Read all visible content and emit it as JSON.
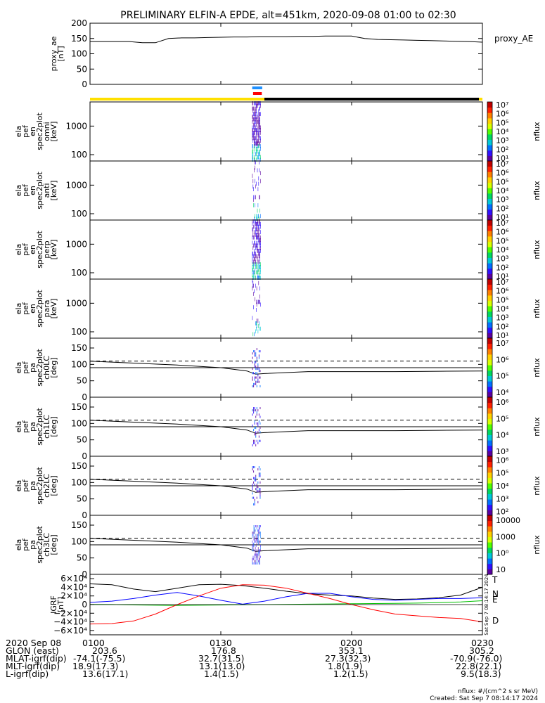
{
  "chart_data": {
    "type": "spectrogram",
    "title": "PRELIMINARY ELFIN-A EPDE, alt=451km, 2020-09-08 01:00 to 02:30",
    "time_ticks": [
      "0100",
      "0130",
      "0200",
      "0230"
    ],
    "time_range_min": [
      0,
      90
    ],
    "science_zone_min": [
      37.2,
      39.2
    ],
    "bars": {
      "blue": [
        37.2,
        39.5
      ],
      "red": [
        37.4,
        39.4
      ],
      "yellow_ranges": [
        [
          0,
          40
        ],
        [
          89.2,
          90
        ]
      ],
      "black_ranges": [
        [
          40,
          89.2
        ]
      ]
    },
    "panels": [
      {
        "id": "proxy_ae",
        "ylabel": [
          "proxy_ae",
          "[nT]"
        ],
        "right_label": "proxy_AE",
        "yticks": [
          "0",
          "50",
          "100",
          "150",
          "200"
        ],
        "ytick_values": [
          0,
          50,
          100,
          150,
          200
        ],
        "ylim": [
          0,
          200
        ],
        "series": {
          "t": [
            0,
            3,
            6,
            9,
            12,
            15,
            18,
            21,
            24,
            27,
            30,
            33,
            36,
            39,
            42,
            45,
            48,
            51,
            54,
            57,
            60,
            63,
            66,
            69,
            72,
            75,
            78,
            81,
            84,
            87,
            90
          ],
          "v": [
            140,
            140,
            140,
            140,
            136,
            136,
            150,
            152,
            152,
            153,
            154,
            155,
            155,
            156,
            156,
            156,
            157,
            157,
            158,
            158,
            158,
            150,
            147,
            146,
            145,
            144,
            143,
            142,
            141,
            140,
            138
          ]
        }
      },
      {
        "id": "spec_omni",
        "ylabel": [
          "ela",
          "pef",
          "en",
          "spec2plot",
          "omni",
          "[keV]"
        ],
        "yticks": [
          "100",
          "1000"
        ],
        "ytick_values": [
          100,
          1000
        ],
        "ylim": [
          60,
          7000
        ],
        "ylog": true,
        "colorbar": {
          "label": "nflux",
          "ticks": [
            "101",
            "102",
            "103",
            "104",
            "105",
            "106",
            "107"
          ]
        }
      },
      {
        "id": "spec_anti",
        "ylabel": [
          "ela",
          "pef",
          "en",
          "spec2plot",
          "anti",
          "[keV]"
        ],
        "yticks": [
          "100",
          "1000"
        ],
        "ytick_values": [
          100,
          1000
        ],
        "ylim": [
          60,
          7000
        ],
        "ylog": true,
        "colorbar": {
          "label": "nflux",
          "ticks": [
            "101",
            "102",
            "103",
            "104",
            "105",
            "106",
            "107"
          ]
        }
      },
      {
        "id": "spec_perp",
        "ylabel": [
          "ela",
          "pef",
          "en",
          "spec2plot",
          "perp",
          "[keV]"
        ],
        "yticks": [
          "100",
          "1000"
        ],
        "ytick_values": [
          100,
          1000
        ],
        "ylim": [
          60,
          7000
        ],
        "ylog": true,
        "colorbar": {
          "label": "nflux",
          "ticks": [
            "101",
            "102",
            "103",
            "104",
            "105",
            "106",
            "107"
          ]
        }
      },
      {
        "id": "spec_para",
        "ylabel": [
          "ela",
          "pef",
          "en",
          "spec2plot",
          "para",
          "[keV]"
        ],
        "yticks": [
          "100",
          "1000"
        ],
        "ytick_values": [
          100,
          1000
        ],
        "ylim": [
          60,
          7000
        ],
        "ylog": true,
        "colorbar": {
          "label": "nflux",
          "ticks": [
            "101",
            "102",
            "103",
            "104",
            "105",
            "106",
            "107"
          ]
        }
      },
      {
        "id": "pa_ch0",
        "ylabel": [
          "ela",
          "pef",
          "pa",
          "spec2plot",
          "ch0LC",
          "[deg]"
        ],
        "yticks": [
          "0",
          "50",
          "100",
          "150"
        ],
        "ytick_values": [
          0,
          50,
          100,
          150
        ],
        "ylim": [
          0,
          180
        ],
        "colorbar": {
          "label": "nflux",
          "ticks": [
            "104",
            "105",
            "106",
            "107"
          ]
        }
      },
      {
        "id": "pa_ch1",
        "ylabel": [
          "ela",
          "pef",
          "pa",
          "spec2plot",
          "ch1LC",
          "[deg]"
        ],
        "yticks": [
          "0",
          "50",
          "100",
          "150"
        ],
        "ytick_values": [
          0,
          50,
          100,
          150
        ],
        "ylim": [
          0,
          180
        ],
        "colorbar": {
          "label": "nflux",
          "ticks": [
            "103",
            "104",
            "105",
            "106"
          ]
        }
      },
      {
        "id": "pa_ch2",
        "ylabel": [
          "ela",
          "pef",
          "pa",
          "spec2plot",
          "ch2LC",
          "[deg]"
        ],
        "yticks": [
          "0",
          "50",
          "100",
          "150"
        ],
        "ytick_values": [
          0,
          50,
          100,
          150
        ],
        "ylim": [
          0,
          180
        ],
        "colorbar": {
          "label": "nflux",
          "ticks": [
            "102",
            "103",
            "104",
            "105",
            "106"
          ]
        }
      },
      {
        "id": "pa_ch3",
        "ylabel": [
          "ela",
          "pef",
          "pa",
          "spec2plot",
          "ch3LC",
          "[deg]"
        ],
        "yticks": [
          "0",
          "50",
          "100",
          "150"
        ],
        "ytick_values": [
          0,
          50,
          100,
          150
        ],
        "ylim": [
          0,
          180
        ],
        "colorbar": {
          "label": "nflux",
          "ticks": [
            "10",
            "100",
            "1000",
            "10000"
          ]
        }
      },
      {
        "id": "igrf",
        "ylabel": [
          "IGRF",
          "[nT]"
        ],
        "yticks": [
          "−6×10⁴",
          "−4×10⁴",
          "−2×10⁴",
          "0",
          "2×10⁴",
          "4×10⁴",
          "6×10⁴"
        ],
        "ytick_values": [
          -60000,
          -40000,
          -20000,
          0,
          20000,
          40000,
          60000
        ],
        "ylim": [
          -70000,
          70000
        ],
        "legend": [
          "T",
          "N",
          "E",
          "D"
        ],
        "legend_colors": [
          "#000000",
          "#0000ff",
          "#00c000",
          "#ff0000"
        ]
      }
    ],
    "pa_lines": {
      "t": [
        0,
        10,
        20,
        30,
        36,
        38,
        40,
        50,
        60,
        70,
        80,
        90
      ],
      "solid": [
        110,
        104,
        98,
        90,
        80,
        70,
        72,
        78,
        78,
        78,
        79,
        80
      ],
      "dashed_deg": 110,
      "flat_deg": 90
    },
    "igrf_series": {
      "t": [
        0,
        5,
        10,
        15,
        20,
        25,
        30,
        35,
        40,
        45,
        50,
        55,
        60,
        65,
        70,
        75,
        80,
        85,
        90
      ],
      "T": [
        48000,
        46000,
        36000,
        30000,
        38000,
        46000,
        47000,
        44000,
        38000,
        31000,
        25000,
        22000,
        20000,
        15000,
        12000,
        13000,
        16000,
        22000,
        40000
      ],
      "N": [
        5000,
        8000,
        14000,
        22000,
        28000,
        20000,
        10000,
        1000,
        8000,
        18000,
        26000,
        26000,
        18000,
        12000,
        10000,
        12000,
        14000,
        14000,
        16000
      ],
      "E": [
        500,
        200,
        -800,
        -1500,
        -2000,
        -1500,
        -1000,
        -500,
        0,
        500,
        1000,
        1500,
        2000,
        2500,
        3000,
        3500,
        4500,
        6000,
        9000
      ],
      "D": [
        -45000,
        -44000,
        -38000,
        -22000,
        0,
        20000,
        38000,
        46000,
        45000,
        38000,
        26000,
        14000,
        0,
        -12000,
        -22000,
        -26000,
        -30000,
        -32000,
        -40000
      ]
    },
    "colorbar_colors": [
      "#ffffff",
      "#5a00a0",
      "#3010ff",
      "#0070ff",
      "#00c8d8",
      "#00d860",
      "#50ff00",
      "#d8ff00",
      "#ffd000",
      "#ff8000",
      "#ff2000",
      "#c00000"
    ],
    "colorbar_label": "nflux",
    "table": {
      "rows": [
        {
          "label": "2020 Sep 08",
          "values": [
            "0100",
            "0130",
            "0200",
            "0230"
          ]
        },
        {
          "label": "GLON (east)",
          "values": [
            "203.6",
            "176.8",
            "353.1",
            "305.2"
          ]
        },
        {
          "label": "MLAT-igrf(dip)",
          "values": [
            "-74.1(-75.5)",
            "32.7(31.5)",
            "27.3(32.3)",
            "-70.9(-76.0)"
          ]
        },
        {
          "label": "MLT-igrf(dip)",
          "values": [
            "18.9(17.3)",
            "13.1(13.0)",
            "1.8(1.9)",
            "22.8(22.1)"
          ]
        },
        {
          "label": "L-igrf(dip)",
          "values": [
            "13.6(17.1)",
            "1.4(1.5)",
            "1.2(1.5)",
            "9.5(18.3)"
          ]
        }
      ]
    },
    "side_stamp": "Sat Sep  7 08:14:17 2024",
    "footer": {
      "units": "nflux: #/(cm^2 s sr MeV)",
      "created": "Created: Sat Sep  7 08:14:17 2024"
    }
  }
}
